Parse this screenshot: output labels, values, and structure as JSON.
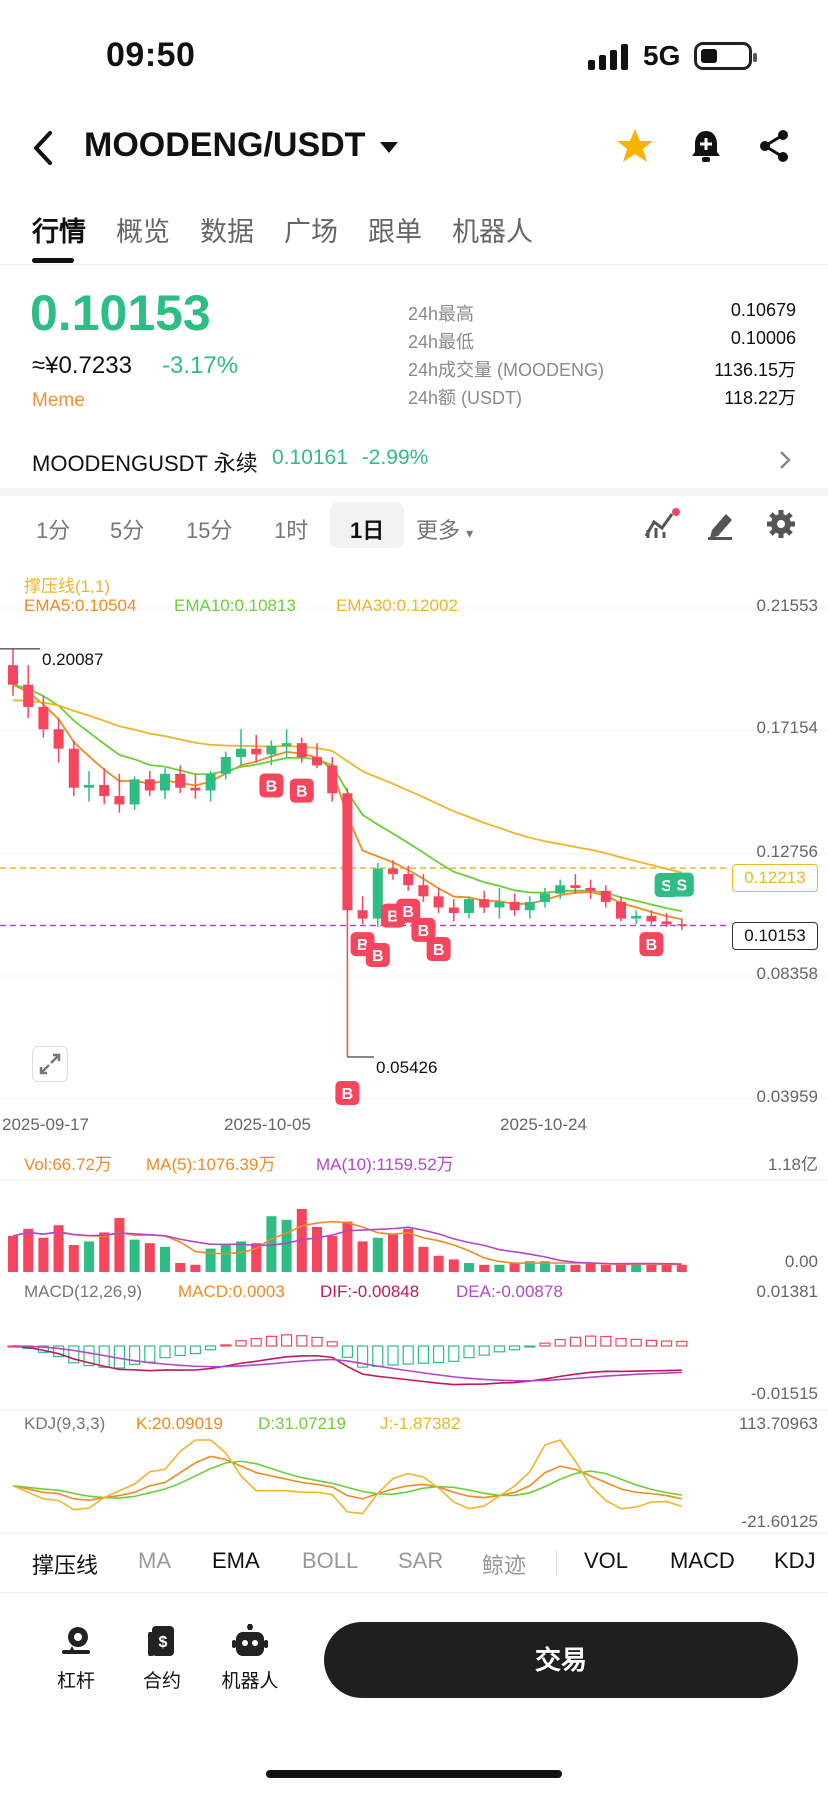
{
  "status_bar": {
    "time": "09:50",
    "network": "5G"
  },
  "header": {
    "title": "MOODENG/USDT"
  },
  "tabs": [
    {
      "label": "行情",
      "active": true
    },
    {
      "label": "概览"
    },
    {
      "label": "数据"
    },
    {
      "label": "广场"
    },
    {
      "label": "跟单"
    },
    {
      "label": "机器人"
    }
  ],
  "ticker": {
    "last_price": "0.10153",
    "cny_price": "≈¥0.7233",
    "change_pct": "-3.17%",
    "tag": "Meme",
    "stats": [
      {
        "label": "24h最高",
        "value": "0.10679"
      },
      {
        "label": "24h最低",
        "value": "0.10006"
      },
      {
        "label": "24h成交量 (MOODENG)",
        "value": "1136.15万"
      },
      {
        "label": "24h额 (USDT)",
        "value": "118.22万"
      }
    ]
  },
  "perpetual": {
    "name": "MOODENGUSDT 永续",
    "price": "0.10161",
    "change": "-2.99%"
  },
  "intervals": [
    "1分",
    "5分",
    "15分",
    "1时",
    "1日",
    "更多"
  ],
  "active_interval": "1日",
  "colors": {
    "up": "#2ebd85",
    "down": "#f6465d",
    "ema5": "#f08a24",
    "ema10": "#6ccf3a",
    "ema30": "#f0b429",
    "ma10": "#b347c9"
  },
  "chart_data": {
    "type": "candlestick",
    "indicator_title": "撑压线(1,1)",
    "ema_legend": [
      "EMA5:0.10504",
      "EMA10:0.10813",
      "EMA30:0.12002"
    ],
    "y_axis_ticks": [
      "0.21553",
      "0.17154",
      "0.12756",
      "0.08358",
      "0.03959"
    ],
    "ylim": [
      0.03959,
      0.21553
    ],
    "x_axis_ticks": [
      "2025-09-17",
      "2025-10-05",
      "2025-10-24"
    ],
    "resistance_price": "0.12213",
    "current_price": "0.10153",
    "high_marker": "0.20087",
    "low_marker": "0.05426",
    "candles": [
      {
        "o": 0.195,
        "h": 0.2009,
        "l": 0.184,
        "c": 0.188
      },
      {
        "o": 0.188,
        "h": 0.195,
        "l": 0.176,
        "c": 0.18
      },
      {
        "o": 0.18,
        "h": 0.184,
        "l": 0.169,
        "c": 0.172
      },
      {
        "o": 0.172,
        "h": 0.176,
        "l": 0.16,
        "c": 0.165
      },
      {
        "o": 0.165,
        "h": 0.168,
        "l": 0.148,
        "c": 0.151
      },
      {
        "o": 0.151,
        "h": 0.157,
        "l": 0.146,
        "c": 0.152
      },
      {
        "o": 0.152,
        "h": 0.158,
        "l": 0.145,
        "c": 0.148
      },
      {
        "o": 0.148,
        "h": 0.156,
        "l": 0.142,
        "c": 0.145
      },
      {
        "o": 0.145,
        "h": 0.155,
        "l": 0.143,
        "c": 0.154
      },
      {
        "o": 0.154,
        "h": 0.157,
        "l": 0.148,
        "c": 0.15
      },
      {
        "o": 0.15,
        "h": 0.158,
        "l": 0.147,
        "c": 0.156
      },
      {
        "o": 0.156,
        "h": 0.159,
        "l": 0.149,
        "c": 0.151
      },
      {
        "o": 0.151,
        "h": 0.156,
        "l": 0.147,
        "c": 0.15
      },
      {
        "o": 0.15,
        "h": 0.157,
        "l": 0.146,
        "c": 0.156
      },
      {
        "o": 0.156,
        "h": 0.164,
        "l": 0.154,
        "c": 0.162
      },
      {
        "o": 0.162,
        "h": 0.172,
        "l": 0.159,
        "c": 0.165
      },
      {
        "o": 0.165,
        "h": 0.17,
        "l": 0.16,
        "c": 0.163
      },
      {
        "o": 0.163,
        "h": 0.168,
        "l": 0.159,
        "c": 0.166
      },
      {
        "o": 0.166,
        "h": 0.172,
        "l": 0.162,
        "c": 0.167
      },
      {
        "o": 0.167,
        "h": 0.169,
        "l": 0.16,
        "c": 0.162
      },
      {
        "o": 0.162,
        "h": 0.167,
        "l": 0.158,
        "c": 0.159
      },
      {
        "o": 0.159,
        "h": 0.162,
        "l": 0.146,
        "c": 0.149
      },
      {
        "o": 0.149,
        "h": 0.151,
        "l": 0.0543,
        "c": 0.107
      },
      {
        "o": 0.107,
        "h": 0.112,
        "l": 0.102,
        "c": 0.104
      },
      {
        "o": 0.104,
        "h": 0.124,
        "l": 0.101,
        "c": 0.122
      },
      {
        "o": 0.122,
        "h": 0.125,
        "l": 0.118,
        "c": 0.12
      },
      {
        "o": 0.12,
        "h": 0.123,
        "l": 0.114,
        "c": 0.116
      },
      {
        "o": 0.116,
        "h": 0.12,
        "l": 0.11,
        "c": 0.112
      },
      {
        "o": 0.112,
        "h": 0.115,
        "l": 0.106,
        "c": 0.108
      },
      {
        "o": 0.108,
        "h": 0.111,
        "l": 0.103,
        "c": 0.106
      },
      {
        "o": 0.106,
        "h": 0.112,
        "l": 0.104,
        "c": 0.111
      },
      {
        "o": 0.111,
        "h": 0.114,
        "l": 0.106,
        "c": 0.108
      },
      {
        "o": 0.108,
        "h": 0.115,
        "l": 0.104,
        "c": 0.11
      },
      {
        "o": 0.11,
        "h": 0.113,
        "l": 0.105,
        "c": 0.107
      },
      {
        "o": 0.107,
        "h": 0.112,
        "l": 0.104,
        "c": 0.11
      },
      {
        "o": 0.11,
        "h": 0.115,
        "l": 0.108,
        "c": 0.113
      },
      {
        "o": 0.113,
        "h": 0.118,
        "l": 0.111,
        "c": 0.116
      },
      {
        "o": 0.116,
        "h": 0.12,
        "l": 0.113,
        "c": 0.115
      },
      {
        "o": 0.115,
        "h": 0.118,
        "l": 0.111,
        "c": 0.114
      },
      {
        "o": 0.114,
        "h": 0.116,
        "l": 0.108,
        "c": 0.11
      },
      {
        "o": 0.11,
        "h": 0.112,
        "l": 0.103,
        "c": 0.104
      },
      {
        "o": 0.104,
        "h": 0.107,
        "l": 0.102,
        "c": 0.105
      },
      {
        "o": 0.105,
        "h": 0.107,
        "l": 0.102,
        "c": 0.103
      },
      {
        "o": 0.103,
        "h": 0.106,
        "l": 0.101,
        "c": 0.102
      },
      {
        "o": 0.102,
        "h": 0.104,
        "l": 0.1,
        "c": 0.1015
      }
    ],
    "buy_markers": [
      17,
      19,
      22,
      23,
      24,
      25,
      26,
      27,
      28,
      42
    ],
    "sell_markers": [
      43,
      44
    ],
    "volume": {
      "legend": [
        "Vol:66.72万",
        "MA(5):1076.39万",
        "MA(10):1159.52万"
      ],
      "y_ticks": [
        "1.18亿",
        "0.00"
      ],
      "max": 118000000
    },
    "macd": {
      "legend": [
        "MACD(12,26,9)",
        "MACD:0.0003",
        "DIF:-0.00848",
        "DEA:-0.00878"
      ],
      "y_ticks": [
        "0.01381",
        "-0.01515"
      ]
    },
    "kdj": {
      "legend": [
        "KDJ(9,3,3)",
        "K:20.09019",
        "D:31.07219",
        "J:-1.87382"
      ],
      "y_ticks": [
        "113.70963",
        "-21.60125"
      ]
    }
  },
  "indicator_tabs": [
    {
      "label": "撑压线",
      "strong": true
    },
    {
      "label": "MA"
    },
    {
      "label": "EMA",
      "strong": true
    },
    {
      "label": "BOLL"
    },
    {
      "label": "SAR"
    },
    {
      "label": "鲸迹"
    },
    {
      "label": "VOL",
      "strong": true
    },
    {
      "label": "MACD",
      "strong": true
    },
    {
      "label": "KDJ",
      "strong": true
    }
  ],
  "bottom_nav": [
    {
      "label": "杠杆",
      "icon": "leverage-icon"
    },
    {
      "label": "合约",
      "icon": "contract-icon"
    },
    {
      "label": "机器人",
      "icon": "robot-icon"
    }
  ],
  "trade_button": "交易"
}
